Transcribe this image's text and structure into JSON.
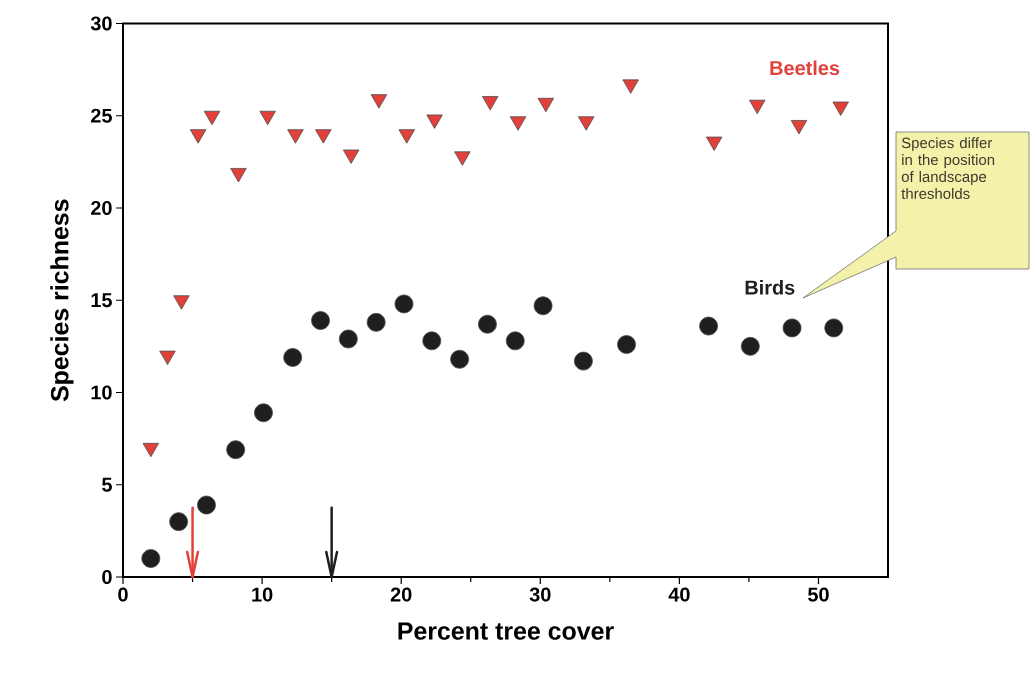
{
  "chart_data": {
    "type": "scatter",
    "xlabel": "Percent tree cover",
    "ylabel": "Species richness",
    "xlim": [
      0,
      55
    ],
    "ylim": [
      0,
      30
    ],
    "xticks": [
      0,
      10,
      20,
      30,
      40,
      50
    ],
    "yticks": [
      0,
      5,
      10,
      15,
      20,
      25,
      30
    ],
    "series": [
      {
        "name": "Beetles",
        "color": "#e2403a",
        "marker": "triangle",
        "x": [
          2.0,
          3.2,
          4.2,
          5.4,
          6.4,
          8.3,
          10.4,
          12.4,
          14.4,
          16.4,
          18.4,
          20.4,
          22.4,
          24.4,
          26.4,
          28.4,
          30.4,
          33.3,
          36.5,
          42.5,
          45.6,
          48.6,
          51.6
        ],
        "values": [
          7.0,
          12.0,
          15.0,
          24.0,
          25.0,
          21.9,
          25.0,
          24.0,
          24.0,
          22.9,
          25.9,
          24.0,
          24.8,
          22.8,
          25.8,
          24.7,
          25.7,
          24.7,
          26.7,
          23.6,
          25.6,
          24.5,
          25.5
        ]
      },
      {
        "name": "Birds",
        "color": "#1f1f1f",
        "marker": "circle",
        "x": [
          2.0,
          4.0,
          6.0,
          8.1,
          10.1,
          12.2,
          14.2,
          16.2,
          18.2,
          20.2,
          22.2,
          24.2,
          26.2,
          28.2,
          30.2,
          33.1,
          36.2,
          42.1,
          45.1,
          48.1,
          51.1
        ],
        "values": [
          1.0,
          3.0,
          3.9,
          6.9,
          8.9,
          11.9,
          13.9,
          12.9,
          13.8,
          14.8,
          12.8,
          11.8,
          13.7,
          12.8,
          14.7,
          11.7,
          12.6,
          13.6,
          12.5,
          13.5,
          13.5
        ]
      }
    ],
    "ref_lines": [
      {
        "axis": "x",
        "value": 5,
        "color": "#e2403a"
      },
      {
        "axis": "x",
        "value": 15,
        "color": "#1f1f1f"
      }
    ],
    "annotations": [
      "Species differ in the position of landscape thresholds"
    ]
  }
}
